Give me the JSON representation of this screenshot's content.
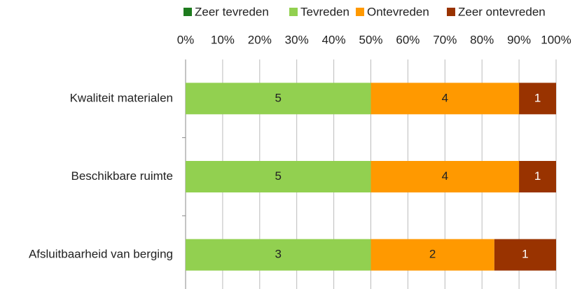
{
  "chart_data": {
    "type": "bar",
    "orientation": "horizontal",
    "stacked": "percent",
    "categories": [
      "Kwaliteit materialen",
      "Beschikbare ruimte",
      "Afsluitbaarheid van berging"
    ],
    "series": [
      {
        "name": "Zeer tevreden",
        "color": "#1e7b1e",
        "values": [
          0,
          0,
          0
        ]
      },
      {
        "name": "Tevreden",
        "color": "#92d050",
        "values": [
          5,
          5,
          3
        ]
      },
      {
        "name": "Ontevreden",
        "color": "#ff9900",
        "values": [
          4,
          4,
          2
        ]
      },
      {
        "name": "Zeer ontevreden",
        "color": "#993300",
        "values": [
          1,
          1,
          1
        ]
      }
    ],
    "xlim": [
      0,
      100
    ],
    "xticks": [
      {
        "value": 0,
        "label": "0%"
      },
      {
        "value": 10,
        "label": "10%"
      },
      {
        "value": 20,
        "label": "20%"
      },
      {
        "value": 30,
        "label": "30%"
      },
      {
        "value": 40,
        "label": "40%"
      },
      {
        "value": 50,
        "label": "50%"
      },
      {
        "value": 60,
        "label": "60%"
      },
      {
        "value": 70,
        "label": "70%"
      },
      {
        "value": 80,
        "label": "80%"
      },
      {
        "value": 90,
        "label": "90%"
      },
      {
        "value": 100,
        "label": "100%"
      }
    ],
    "grid": true,
    "legend": "top"
  }
}
